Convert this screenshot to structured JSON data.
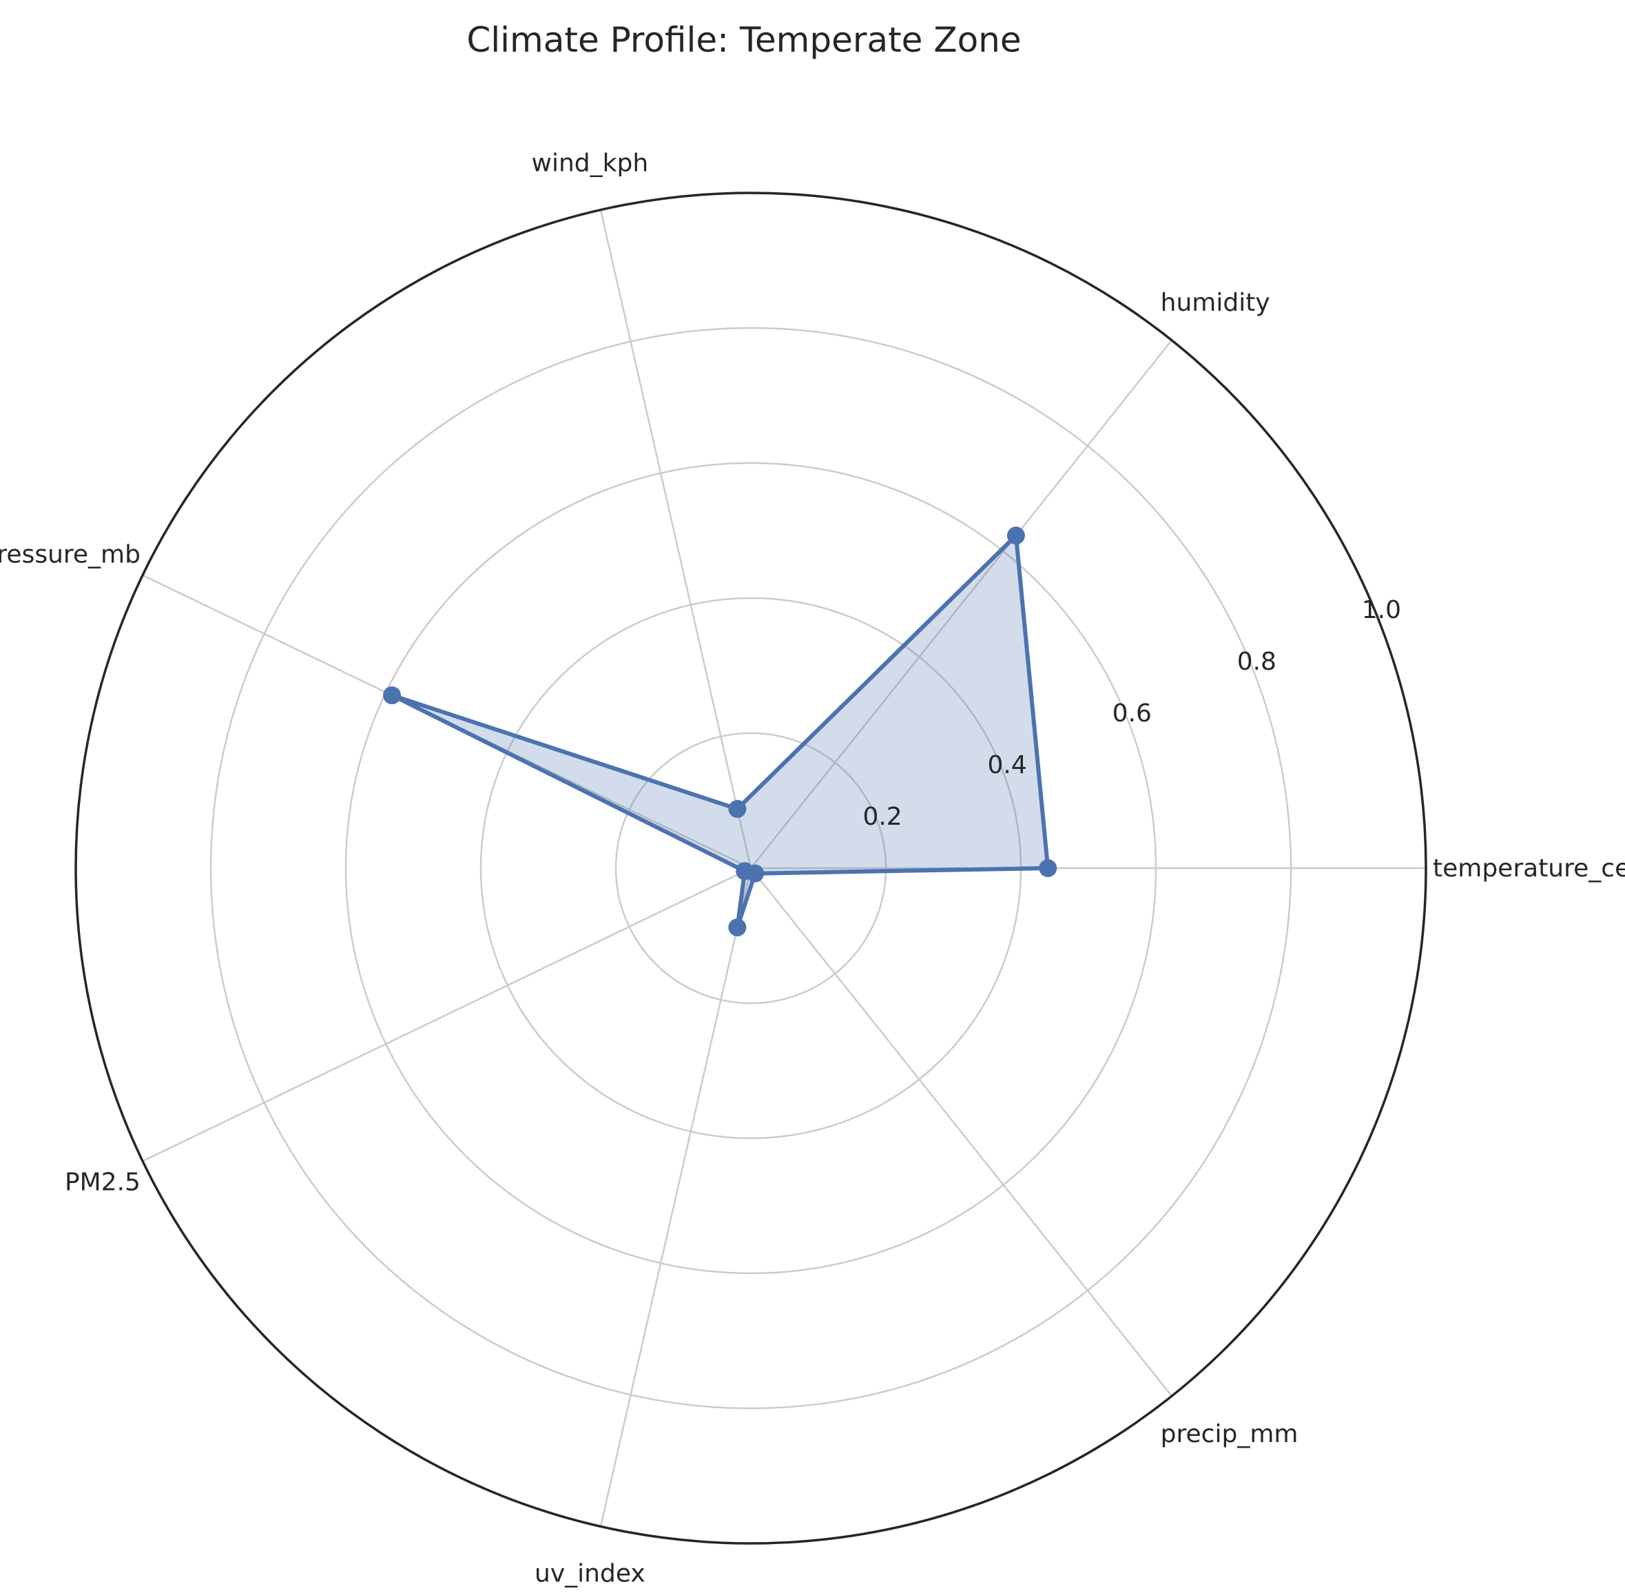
{
  "chart_data": {
    "type": "radar",
    "title": "Climate Profile: Temperate Zone",
    "categories": [
      "temperature_celsius",
      "humidity",
      "wind_kph",
      "pressure_mb",
      "PM2.5",
      "uv_index",
      "precip_mm"
    ],
    "radial_ticks": [
      "0.2",
      "0.4",
      "0.6",
      "0.8",
      "1.0"
    ],
    "rlim": [
      0,
      1.0
    ],
    "grid": true,
    "legend": "none",
    "series": [
      {
        "values": [
          0.44,
          0.63,
          0.09,
          0.59,
          0.01,
          0.09,
          0.01
        ],
        "color": "#4c72b0",
        "fill_color": "#4c72b0",
        "fill_opacity": 0.25
      }
    ]
  }
}
